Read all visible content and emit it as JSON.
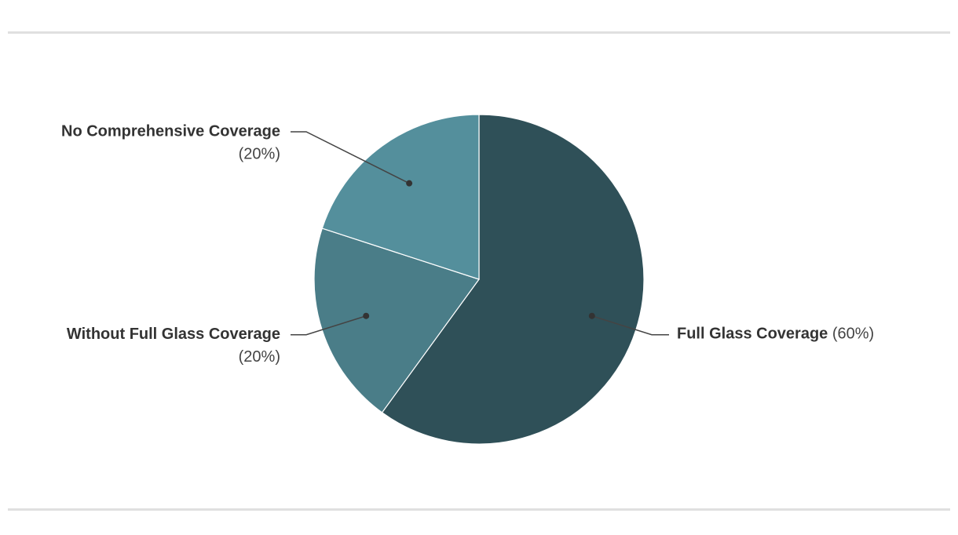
{
  "chart_data": {
    "type": "pie",
    "categories": [
      "Full Glass Coverage",
      "Without Full Glass Coverage",
      "No Comprehensive Coverage"
    ],
    "values": [
      60,
      20,
      20
    ],
    "value_labels": [
      "(60%)",
      "(20%)",
      "(20%)"
    ],
    "colors": [
      "#2f5058",
      "#4a7d88",
      "#548f9c"
    ]
  }
}
